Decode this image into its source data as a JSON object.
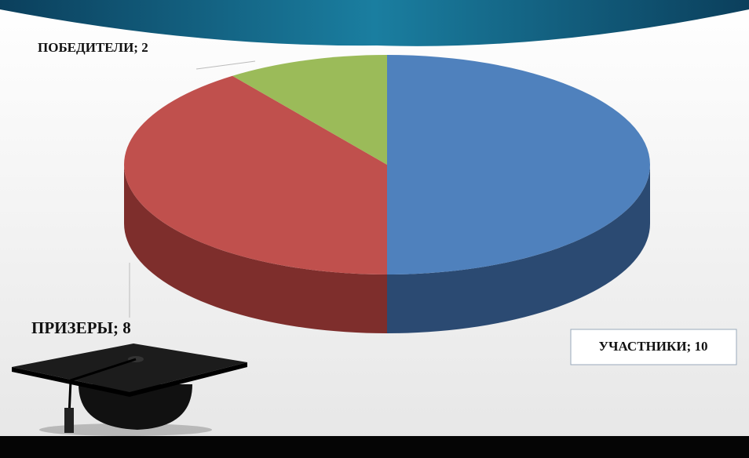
{
  "chart_data": {
    "type": "pie",
    "values": [
      10,
      8,
      2
    ],
    "value_labels": [
      "УЧАСТНИКИ; 10",
      "ПРИЗЕРЫ; 8",
      "ПОБЕДИТЕЛИ; 2"
    ],
    "colors": [
      "#4f81bd",
      "#c0504d",
      "#9bbb59"
    ],
    "side_colors": [
      "#2b4a72",
      "#7e2e2c",
      "#5f7a33"
    ]
  }
}
